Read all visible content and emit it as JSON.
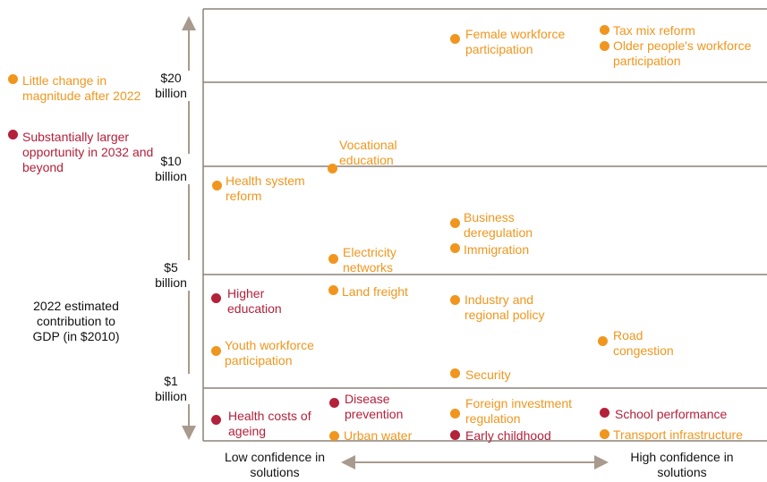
{
  "legend": [
    {
      "label": "Little change in magnitude after 2022",
      "color": "#f0961e"
    },
    {
      "label": "Substantially larger opportunity in 2032 and beyond",
      "color": "#b3213a"
    }
  ],
  "y_axis": {
    "title": "2022 estimated contribution to GDP (in $2010)",
    "ticks": [
      "$20 billion",
      "$10 billion",
      "$5 billion",
      "$1 billion"
    ]
  },
  "x_axis": {
    "low": "Low confidence in solutions",
    "high": "High confidence in solutions"
  },
  "items": [
    {
      "label": "Female workforce participation",
      "color": "#f0961e"
    },
    {
      "label": "Tax mix reform",
      "color": "#f0961e"
    },
    {
      "label": "Older people's workforce participation",
      "color": "#f0961e"
    },
    {
      "label": "Vocational education",
      "color": "#f0961e"
    },
    {
      "label": "Health system reform",
      "color": "#f0961e"
    },
    {
      "label": "Business deregulation",
      "color": "#f0961e"
    },
    {
      "label": "Immigration",
      "color": "#f0961e"
    },
    {
      "label": "Electricity networks",
      "color": "#f0961e"
    },
    {
      "label": "Higher education",
      "color": "#b3213a"
    },
    {
      "label": "Land freight",
      "color": "#f0961e"
    },
    {
      "label": "Industry and regional policy",
      "color": "#f0961e"
    },
    {
      "label": "Youth workforce participation",
      "color": "#f0961e"
    },
    {
      "label": "Road congestion",
      "color": "#f0961e"
    },
    {
      "label": "Security",
      "color": "#f0961e"
    },
    {
      "label": "Disease prevention",
      "color": "#b3213a"
    },
    {
      "label": "Foreign investment regulation",
      "color": "#f0961e"
    },
    {
      "label": "School performance",
      "color": "#b3213a"
    },
    {
      "label": "Health costs of ageing",
      "color": "#b3213a"
    },
    {
      "label": "Urban water",
      "color": "#f0961e"
    },
    {
      "label": "Early childhood",
      "color": "#b3213a"
    },
    {
      "label": "Transport infrastructure",
      "color": "#f0961e"
    }
  ]
}
